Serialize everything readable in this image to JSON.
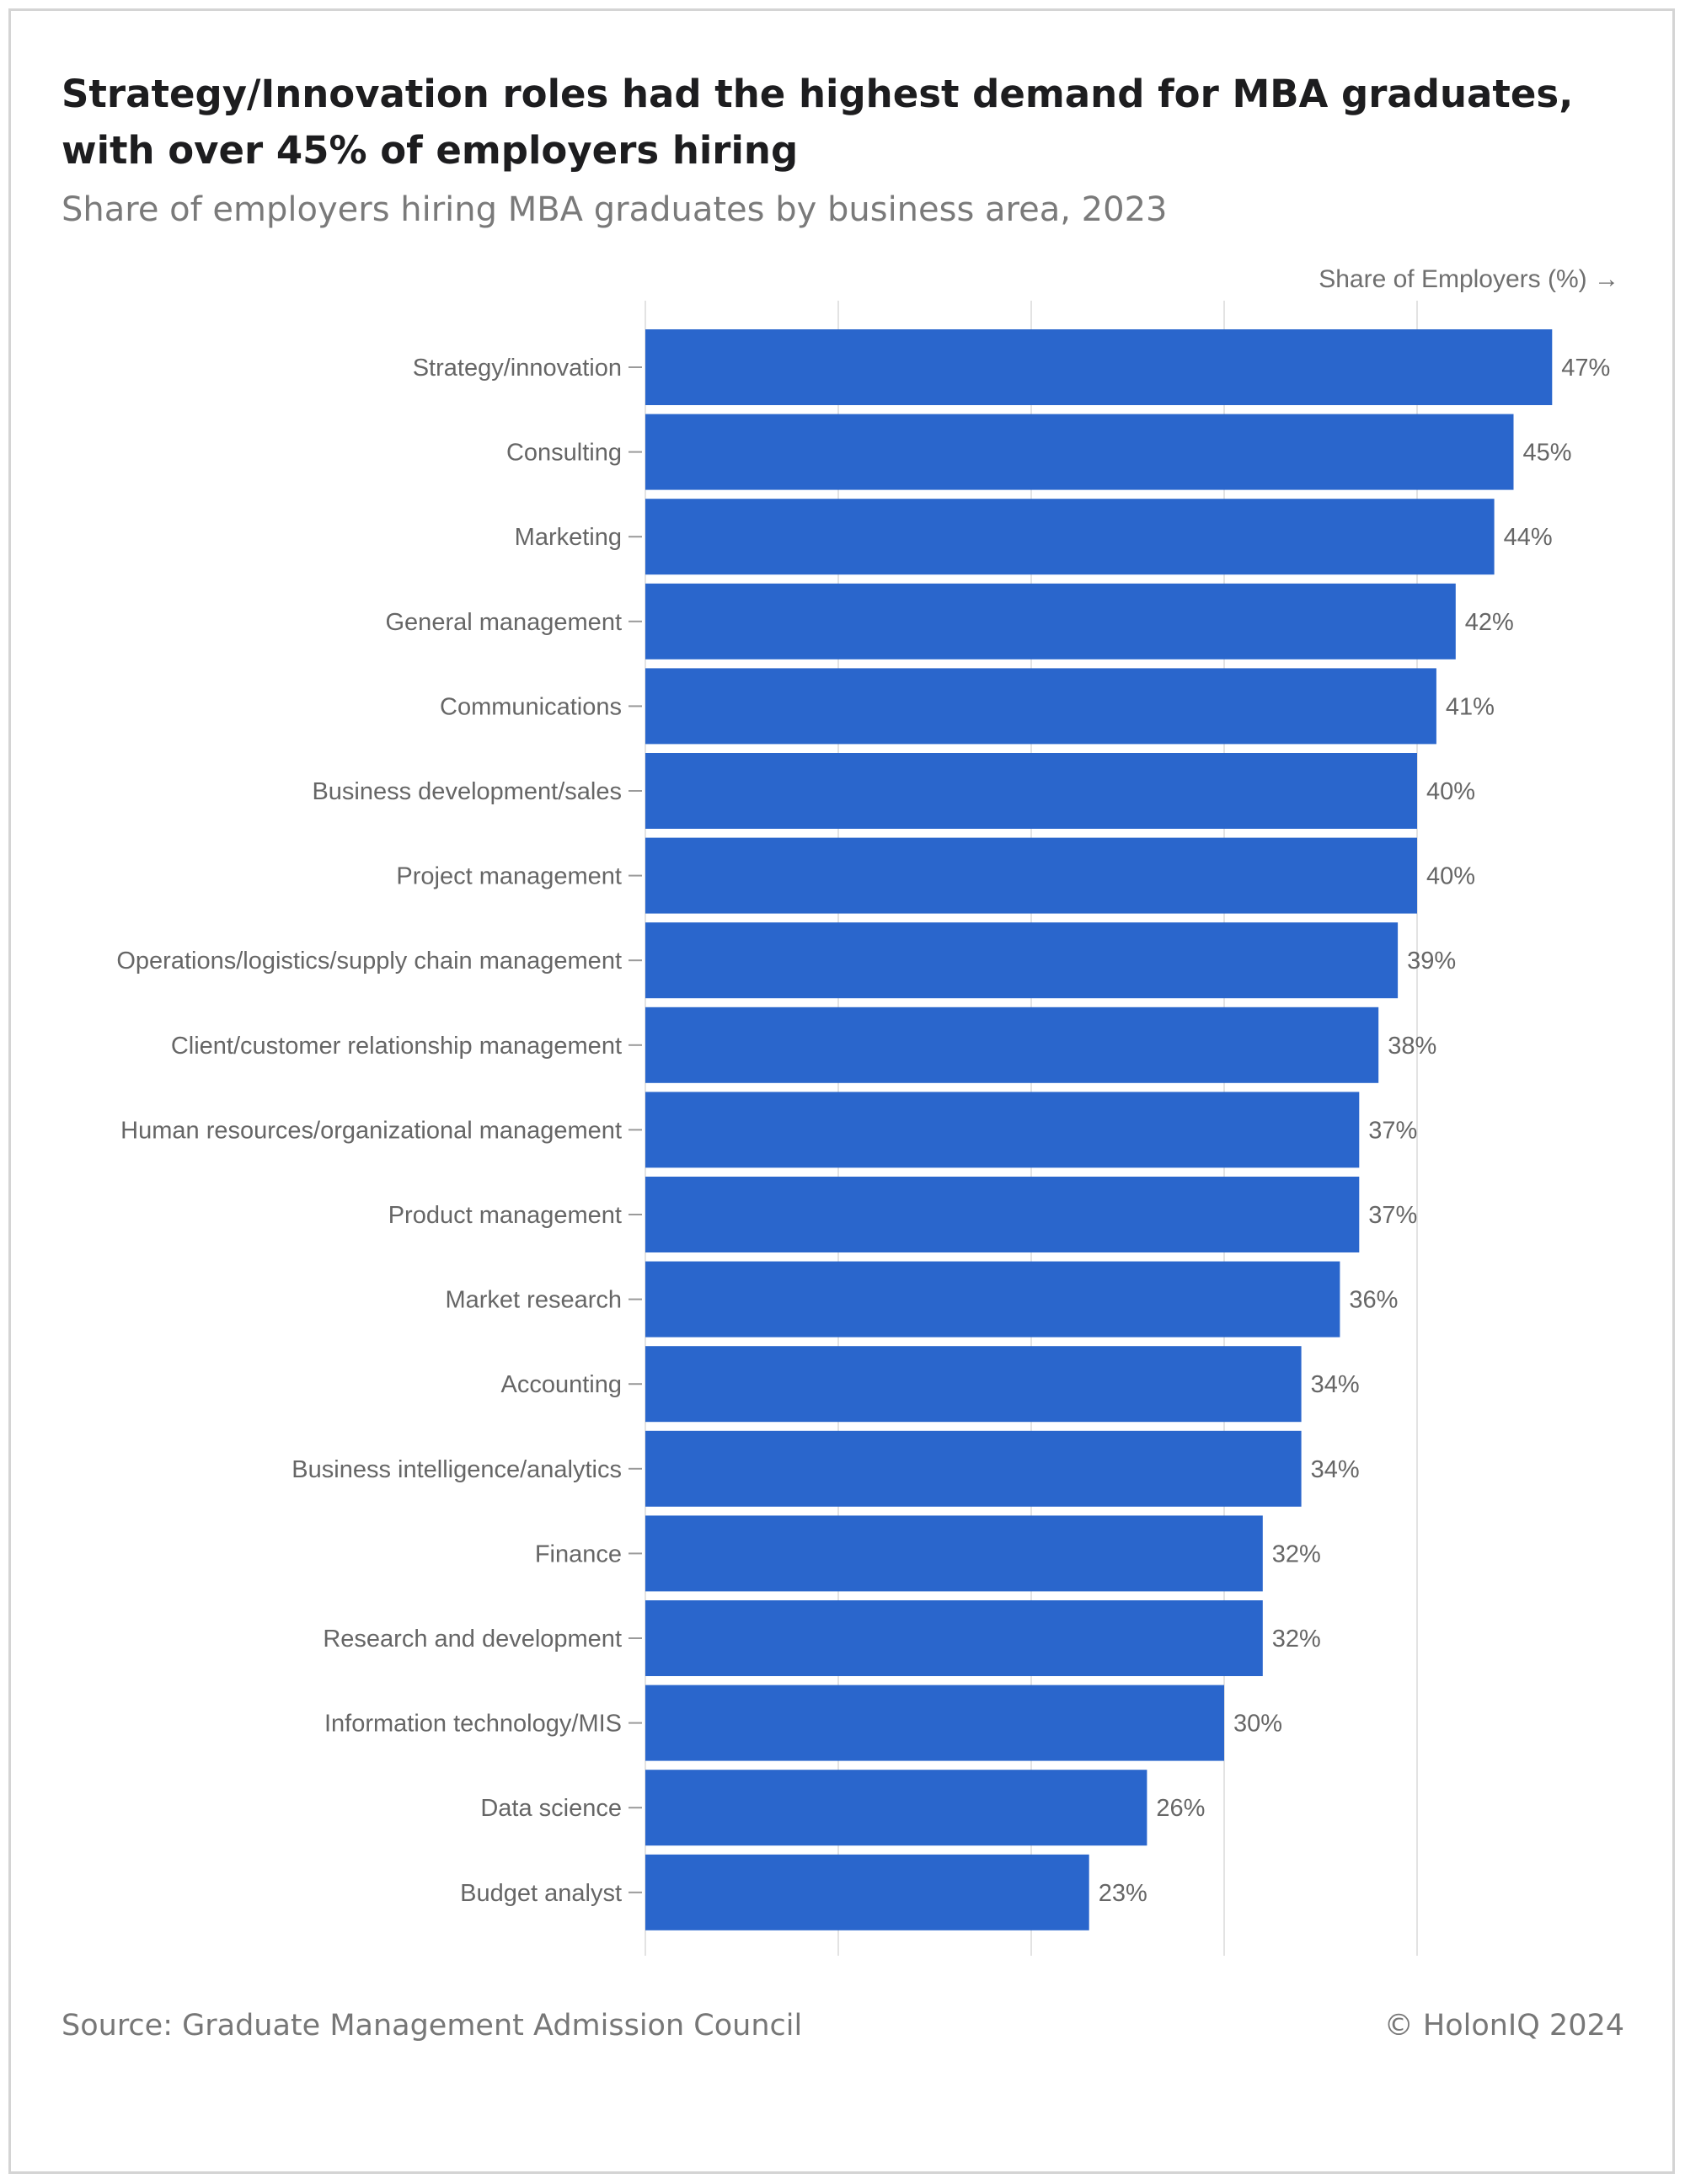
{
  "title": "Strategy/Innovation roles had the highest demand for MBA graduates, with over 45% of employers hiring",
  "subtitle": "Share of employers hiring MBA graduates by business area, 2023",
  "axis_title": "Share of Employers (%) →",
  "source": "Source: Graduate Management Admission Council",
  "copyright": "© HolonIQ 2024",
  "colors": {
    "bar": "#2a66cc",
    "grid": "#e3e3e3",
    "tick": "#9a9a9a",
    "text": "#666666"
  },
  "chart_data": {
    "type": "bar",
    "orientation": "horizontal",
    "categories": [
      "Strategy/innovation",
      "Consulting",
      "Marketing",
      "General management",
      "Communications",
      "Business development/sales",
      "Project management",
      "Operations/logistics/supply chain management",
      "Client/customer relationship management",
      "Human resources/organizational management",
      "Product management",
      "Market research",
      "Accounting",
      "Business intelligence/analytics",
      "Finance",
      "Research and development",
      "Information technology/MIS",
      "Data science",
      "Budget analyst"
    ],
    "values": [
      47,
      45,
      44,
      42,
      41,
      40,
      40,
      39,
      38,
      37,
      37,
      36,
      34,
      34,
      32,
      32,
      30,
      26,
      23
    ],
    "value_labels": [
      "47%",
      "45%",
      "44%",
      "42%",
      "41%",
      "40%",
      "40%",
      "39%",
      "38%",
      "37%",
      "37%",
      "36%",
      "34%",
      "34%",
      "32%",
      "32%",
      "30%",
      "26%",
      "23%"
    ],
    "xlabel": "Share of Employers (%) →",
    "ylabel": "",
    "xlim": [
      0,
      50
    ],
    "grid": true,
    "gridlines": [
      0,
      10,
      20,
      30,
      40
    ]
  }
}
